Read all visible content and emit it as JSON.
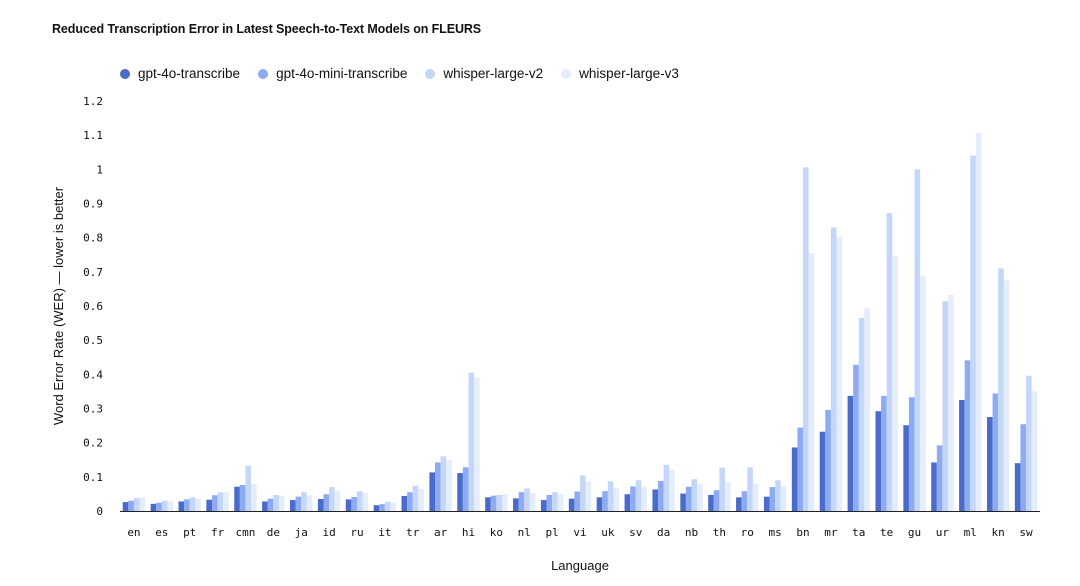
{
  "chart_data": {
    "type": "bar",
    "title": "Reduced Transcription Error in Latest Speech-to-Text Models on FLEURS",
    "xlabel": "Language",
    "ylabel": "Word Error Rate (WER) — lower is better",
    "ylim": [
      0,
      1.2
    ],
    "yticks": [
      "0",
      "0.1",
      "0.2",
      "0.3",
      "0.4",
      "0.5",
      "0.6",
      "0.7",
      "0.8",
      "0.9",
      "1",
      "1.1",
      "1.2"
    ],
    "legend_position": "top-left",
    "grid": false,
    "categories": [
      "en",
      "es",
      "pt",
      "fr",
      "cmn",
      "de",
      "ja",
      "id",
      "ru",
      "it",
      "tr",
      "ar",
      "hi",
      "ko",
      "nl",
      "pl",
      "vi",
      "uk",
      "sv",
      "da",
      "nb",
      "th",
      "ro",
      "ms",
      "bn",
      "mr",
      "ta",
      "te",
      "gu",
      "ur",
      "ml",
      "kn",
      "sw"
    ],
    "series": [
      {
        "name": "gpt-4o-transcribe",
        "color": "#4a6bc7",
        "values": [
          0.026,
          0.021,
          0.028,
          0.033,
          0.071,
          0.028,
          0.032,
          0.035,
          0.034,
          0.017,
          0.044,
          0.113,
          0.111,
          0.04,
          0.037,
          0.032,
          0.036,
          0.04,
          0.049,
          0.063,
          0.051,
          0.047,
          0.04,
          0.042,
          0.186,
          0.232,
          0.337,
          0.292,
          0.251,
          0.142,
          0.325,
          0.275,
          0.14
        ]
      },
      {
        "name": "gpt-4o-mini-transcribe",
        "color": "#8cabf2",
        "values": [
          0.03,
          0.024,
          0.034,
          0.046,
          0.076,
          0.036,
          0.042,
          0.049,
          0.041,
          0.02,
          0.055,
          0.142,
          0.128,
          0.045,
          0.055,
          0.047,
          0.057,
          0.058,
          0.072,
          0.088,
          0.071,
          0.061,
          0.058,
          0.07,
          0.244,
          0.296,
          0.428,
          0.337,
          0.333,
          0.192,
          0.441,
          0.344,
          0.254
        ]
      },
      {
        "name": "whisper-large-v2",
        "color": "#c5d7f8",
        "values": [
          0.038,
          0.03,
          0.04,
          0.055,
          0.133,
          0.047,
          0.055,
          0.07,
          0.058,
          0.027,
          0.074,
          0.16,
          0.405,
          0.047,
          0.066,
          0.055,
          0.104,
          0.087,
          0.09,
          0.135,
          0.093,
          0.127,
          0.128,
          0.09,
          1.006,
          0.83,
          0.565,
          0.872,
          1.0,
          0.614,
          1.04,
          0.71,
          0.396
        ]
      },
      {
        "name": "whisper-large-v3",
        "color": "#e4edfc",
        "values": [
          0.04,
          0.028,
          0.036,
          0.056,
          0.079,
          0.044,
          0.046,
          0.059,
          0.052,
          0.024,
          0.065,
          0.15,
          0.39,
          0.049,
          0.052,
          0.049,
          0.085,
          0.066,
          0.07,
          0.12,
          0.08,
          0.085,
          0.08,
          0.072,
          0.755,
          0.803,
          0.595,
          0.745,
          0.688,
          0.632,
          1.106,
          0.675,
          0.35
        ]
      }
    ]
  }
}
